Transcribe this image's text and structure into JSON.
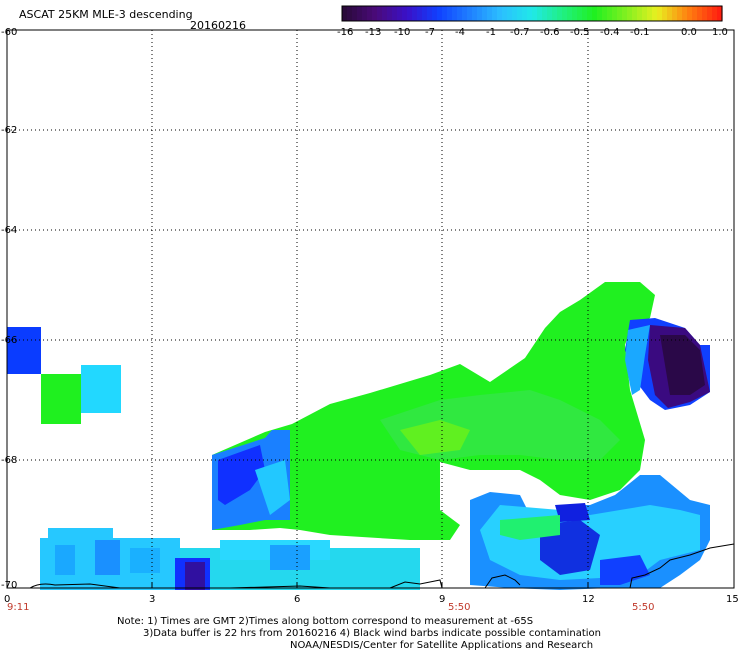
{
  "header": {
    "title": "ASCAT 25KM MLE-3 descending",
    "date": "20160216"
  },
  "colorbar": {
    "labels": [
      "-16",
      "-13",
      "-10",
      "-7",
      "-4",
      "-1",
      "-0.7",
      "-0.6",
      "-0.5",
      "-0.4",
      "-0.1",
      "0.0",
      "1.0"
    ],
    "colors": [
      "#2a0a3a",
      "#4a0a7a",
      "#3a10c8",
      "#1040ff",
      "#1f7fff",
      "#2bbfff",
      "#20e8e8",
      "#20f080",
      "#20f020",
      "#80f020",
      "#e8f020",
      "#ff8010",
      "#ff2010"
    ]
  },
  "axes": {
    "x_ticks": [
      "0",
      "3",
      "6",
      "9",
      "12",
      "15"
    ],
    "y_ticks": [
      "-60",
      "-62",
      "-64",
      "-66",
      "-68",
      "-70"
    ],
    "time_labels": [
      "9:11",
      "5:50",
      "5:50"
    ]
  },
  "notes": {
    "line1": "Note: 1) Times are GMT 2)Times along bottom correspond to measurement at -65S",
    "line2": "3)Data buffer is 22 hrs from 20160216 4) Black wind barbs indicate possible contamination",
    "line3": "NOAA/NESDIS/Center for Satellite Applications and Research"
  }
}
